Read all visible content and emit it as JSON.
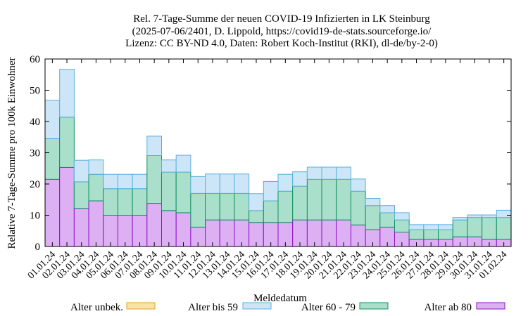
{
  "chart_data": {
    "type": "bar",
    "stacked": true,
    "title_lines": [
      "Rel. 7-Tage-Summe der neuen COVID-19 Infizierten in LK Steinburg",
      "(2025-07-06/2401, D. Lippold, https://covid19-de-stats.sourceforge.io/",
      "Lizenz: CC BY-ND 4.0, Daten: Robert Koch-Institut (RKI), dl-de/by-2-0)"
    ],
    "xlabel": "Meldedatum",
    "ylabel": "Relative 7-Tage-Summe pro 100k Einwohner",
    "ylim": [
      0,
      60
    ],
    "yticks": [
      0,
      10,
      20,
      30,
      40,
      50,
      60
    ],
    "grid": false,
    "legend_position": "bottom",
    "categories": [
      "01.01.24",
      "02.01.24",
      "03.01.24",
      "04.01.24",
      "05.01.24",
      "06.01.24",
      "07.01.24",
      "08.01.24",
      "09.01.24",
      "10.01.24",
      "11.01.24",
      "12.01.24",
      "13.01.24",
      "14.01.24",
      "15.01.24",
      "16.01.24",
      "17.01.24",
      "18.01.24",
      "19.01.24",
      "20.01.24",
      "21.01.24",
      "22.01.24",
      "23.01.24",
      "24.01.24",
      "25.01.24",
      "26.01.24",
      "27.01.24",
      "28.01.24",
      "29.01.24",
      "30.01.24",
      "31.01.24",
      "01.02.24"
    ],
    "series": [
      {
        "name": "Alter unbek.",
        "fill": "#fbe3a8",
        "stroke": "#e0a020",
        "values": [
          0,
          0,
          0,
          0,
          0,
          0,
          0,
          0,
          0,
          0,
          0,
          0,
          0,
          0,
          0,
          0,
          0,
          0,
          0,
          0,
          0,
          0,
          0,
          0,
          0,
          0,
          0,
          0,
          0,
          0,
          0,
          0
        ]
      },
      {
        "name": "Alter ab 80",
        "fill": "#dcb0f2",
        "stroke": "#9010c8",
        "values": [
          21.5,
          25.3,
          12.2,
          14.6,
          10.0,
          10.0,
          10.0,
          13.8,
          11.5,
          10.8,
          6.2,
          8.5,
          8.5,
          8.5,
          7.7,
          7.7,
          7.7,
          8.5,
          8.5,
          8.5,
          8.5,
          6.9,
          5.4,
          6.2,
          4.6,
          2.3,
          2.3,
          2.3,
          3.1,
          3.1,
          2.3,
          2.3
        ]
      },
      {
        "name": "Alter 60 - 79",
        "fill": "#aadfcc",
        "stroke": "#109060",
        "values": [
          13.0,
          16.1,
          8.5,
          8.5,
          8.5,
          8.5,
          8.5,
          15.3,
          12.3,
          13.0,
          10.8,
          8.5,
          8.5,
          8.5,
          3.8,
          6.9,
          10.0,
          10.8,
          13.0,
          13.0,
          13.0,
          10.8,
          7.7,
          4.6,
          3.9,
          3.1,
          3.1,
          3.1,
          5.4,
          6.2,
          7.0,
          7.0
        ]
      },
      {
        "name": "Alter bis 59",
        "fill": "#cce6f8",
        "stroke": "#58b0dc",
        "values": [
          12.3,
          15.3,
          6.9,
          4.6,
          4.6,
          4.6,
          4.6,
          6.2,
          3.9,
          5.4,
          5.4,
          6.2,
          6.2,
          6.2,
          5.4,
          6.2,
          5.4,
          4.6,
          3.9,
          3.9,
          3.9,
          3.9,
          2.3,
          2.3,
          2.3,
          1.6,
          1.6,
          1.6,
          0.8,
          0.8,
          0.8,
          2.3
        ]
      }
    ]
  },
  "legend": [
    {
      "label": "Alter unbek.",
      "fill": "#fbe3a8",
      "stroke": "#e0a020"
    },
    {
      "label": "Alter bis 59",
      "fill": "#cce6f8",
      "stroke": "#58b0dc"
    },
    {
      "label": "Alter 60 - 79",
      "fill": "#aadfcc",
      "stroke": "#109060"
    },
    {
      "label": "Alter ab 80",
      "fill": "#dcb0f2",
      "stroke": "#9010c8"
    }
  ]
}
